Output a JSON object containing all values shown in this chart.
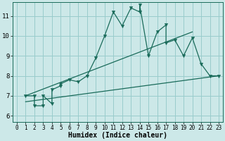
{
  "xlabel": "Humidex (Indice chaleur)",
  "bg_color": "#cce8e8",
  "grid_color": "#99cccc",
  "line_color": "#1a6b5a",
  "xlim": [
    -0.5,
    23.5
  ],
  "ylim": [
    5.7,
    11.7
  ],
  "yticks": [
    6,
    7,
    8,
    9,
    10,
    11
  ],
  "xticks": [
    0,
    1,
    2,
    3,
    4,
    5,
    6,
    7,
    8,
    9,
    10,
    11,
    12,
    13,
    14,
    15,
    16,
    17,
    18,
    19,
    20,
    21,
    22,
    23
  ],
  "main_x": [
    1,
    2,
    2,
    3,
    3,
    4,
    4,
    5,
    5,
    6,
    7,
    8,
    9,
    10,
    11,
    12,
    13,
    14,
    14,
    15,
    16,
    17,
    17,
    18,
    19,
    20,
    21,
    22,
    23
  ],
  "main_y": [
    7.0,
    7.0,
    6.5,
    6.5,
    7.0,
    6.6,
    7.3,
    7.5,
    7.6,
    7.8,
    7.7,
    8.0,
    8.9,
    10.0,
    11.2,
    10.5,
    11.4,
    11.2,
    11.55,
    9.0,
    10.2,
    10.55,
    9.65,
    9.8,
    9.0,
    9.9,
    8.6,
    8.0,
    8.0
  ],
  "lower_line_x": [
    1,
    23
  ],
  "lower_line_y": [
    6.7,
    8.0
  ],
  "upper_line_x": [
    1,
    20
  ],
  "upper_line_y": [
    7.0,
    10.2
  ],
  "marker_size": 3,
  "line_width": 0.9
}
